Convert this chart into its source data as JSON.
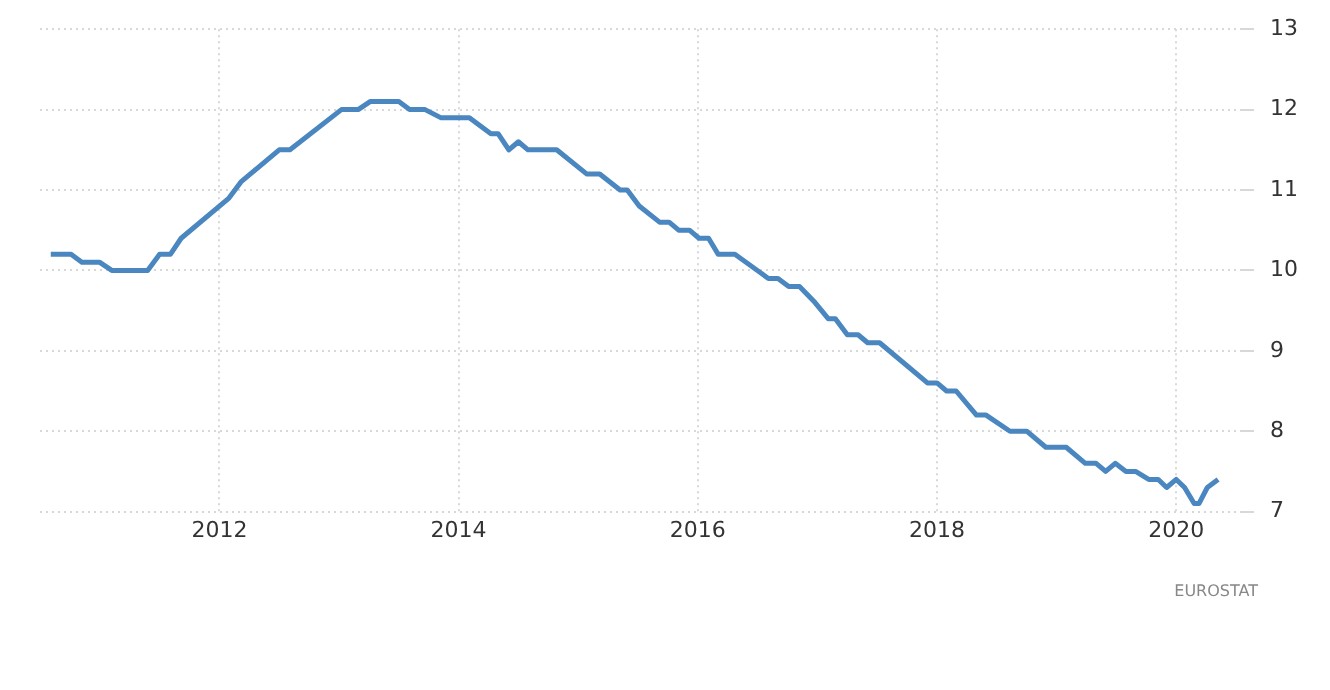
{
  "chart_data": {
    "type": "line",
    "x": [
      2010.59,
      2010.76,
      2010.85,
      2011.0,
      2011.1,
      2011.4,
      2011.5,
      2011.59,
      2011.68,
      2012.08,
      2012.18,
      2012.5,
      2012.59,
      2013.02,
      2013.16,
      2013.26,
      2013.5,
      2013.59,
      2013.72,
      2013.85,
      2014.09,
      2014.27,
      2014.33,
      2014.42,
      2014.5,
      2014.58,
      2014.82,
      2015.07,
      2015.18,
      2015.35,
      2015.41,
      2015.51,
      2015.68,
      2015.76,
      2015.84,
      2015.93,
      2016.01,
      2016.09,
      2016.17,
      2016.31,
      2016.59,
      2016.67,
      2016.76,
      2016.85,
      2016.98,
      2017.09,
      2017.15,
      2017.25,
      2017.34,
      2017.42,
      2017.52,
      2017.92,
      2018.0,
      2018.08,
      2018.16,
      2018.33,
      2018.41,
      2018.61,
      2018.75,
      2018.91,
      2019.08,
      2019.24,
      2019.33,
      2019.41,
      2019.49,
      2019.58,
      2019.66,
      2019.77,
      2019.85,
      2019.92,
      2020.0,
      2020.07,
      2020.15,
      2020.19,
      2020.26,
      2020.35
    ],
    "series": [
      {
        "color": "#4a87c0",
        "values": [
          10.2,
          10.2,
          10.1,
          10.1,
          10.0,
          10.0,
          10.2,
          10.2,
          10.4,
          10.9,
          11.1,
          11.5,
          11.5,
          12.0,
          12.0,
          12.1,
          12.1,
          12.0,
          12.0,
          11.9,
          11.9,
          11.7,
          11.7,
          11.5,
          11.6,
          11.5,
          11.5,
          11.2,
          11.2,
          11.0,
          11.0,
          10.8,
          10.6,
          10.6,
          10.5,
          10.5,
          10.4,
          10.4,
          10.2,
          10.2,
          9.9,
          9.9,
          9.8,
          9.8,
          9.6,
          9.4,
          9.4,
          9.2,
          9.2,
          9.1,
          9.1,
          8.6,
          8.6,
          8.5,
          8.5,
          8.2,
          8.2,
          8.0,
          8.0,
          7.8,
          7.8,
          7.6,
          7.6,
          7.5,
          7.6,
          7.5,
          7.5,
          7.4,
          7.4,
          7.3,
          7.4,
          7.3,
          7.1,
          7.1,
          7.3,
          7.4
        ]
      }
    ],
    "xlim": [
      2010.5,
      2020.55
    ],
    "xticks": [
      2012,
      2014,
      2016,
      2018,
      2020
    ],
    "ylim": [
      7,
      13
    ],
    "yticks": [
      7,
      8,
      9,
      10,
      11,
      12,
      13
    ],
    "grid": true,
    "legend": false,
    "marker": "none",
    "line_style": "solid",
    "annotations": [
      "EUROSTAT"
    ]
  }
}
